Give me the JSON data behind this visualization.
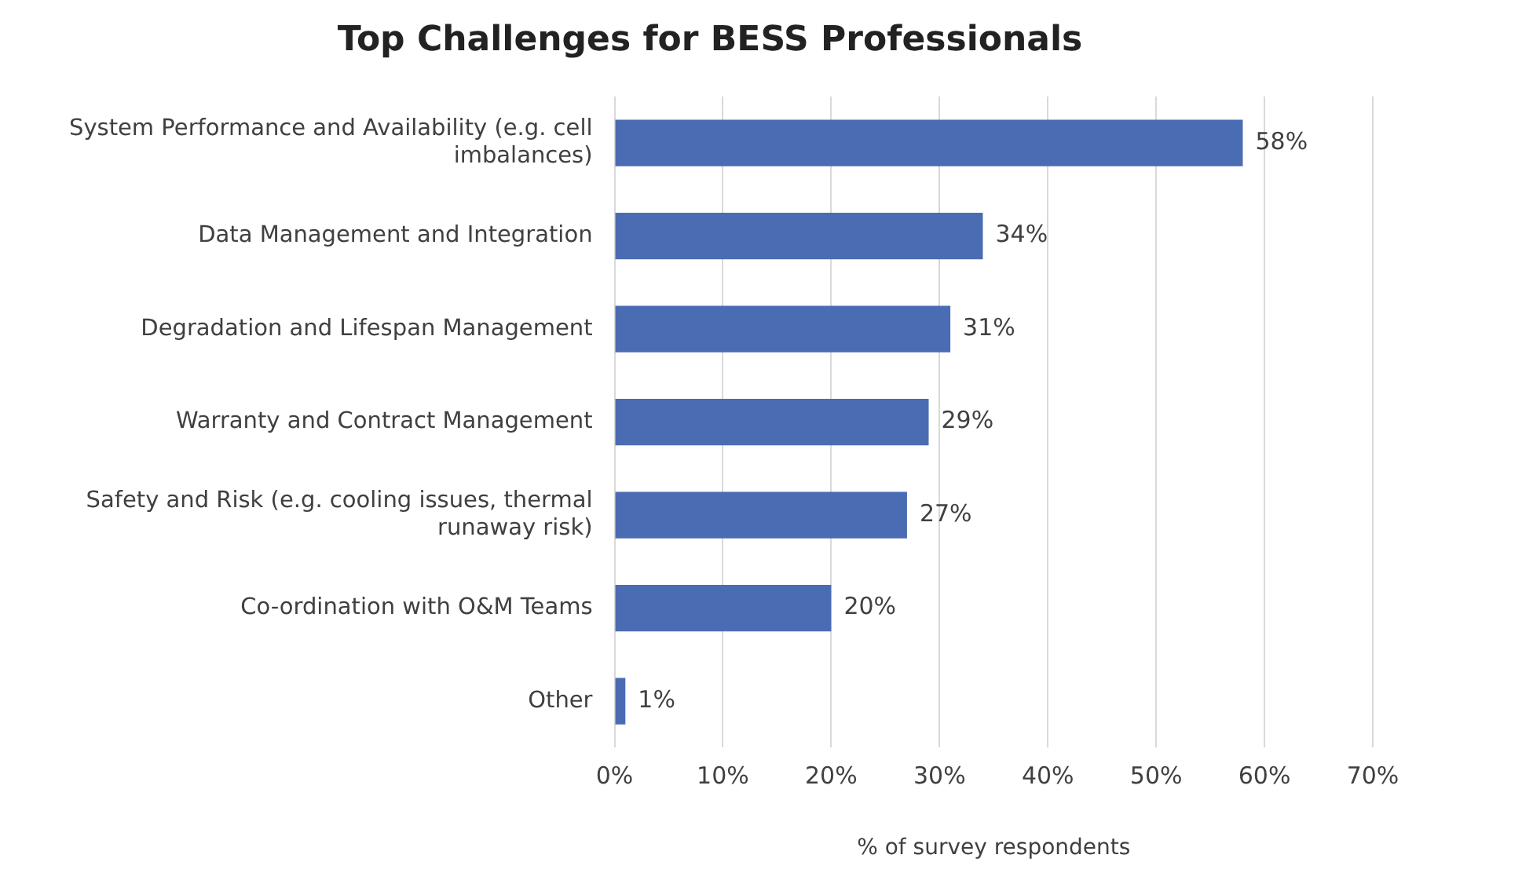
{
  "chart_data": {
    "type": "bar",
    "orientation": "horizontal",
    "title": "Top Challenges for BESS Professionals",
    "xlabel": "% of survey respondents",
    "categories": [
      "System Performance and Availability (e.g. cell imbalances)",
      "Data Management and Integration",
      "Degradation and Lifespan Management",
      "Warranty and Contract Management",
      "Safety and Risk (e.g. cooling issues, thermal runaway risk)",
      "Co-ordination with O&M Teams",
      "Other"
    ],
    "values": [
      58,
      34,
      31,
      29,
      27,
      20,
      1
    ],
    "value_labels": [
      "58%",
      "34%",
      "31%",
      "29%",
      "27%",
      "20%",
      "1%"
    ],
    "color": "#4a6cb3",
    "xlim": [
      0,
      70
    ],
    "xticks": [
      {
        "value": 0,
        "label": "0%"
      },
      {
        "value": 10,
        "label": "10%"
      },
      {
        "value": 20,
        "label": "20%"
      },
      {
        "value": 30,
        "label": "30%"
      },
      {
        "value": 40,
        "label": "40%"
      },
      {
        "value": 50,
        "label": "50%"
      },
      {
        "value": 60,
        "label": "60%"
      },
      {
        "value": 70,
        "label": "70%"
      }
    ],
    "grid": "x",
    "legend": false
  }
}
